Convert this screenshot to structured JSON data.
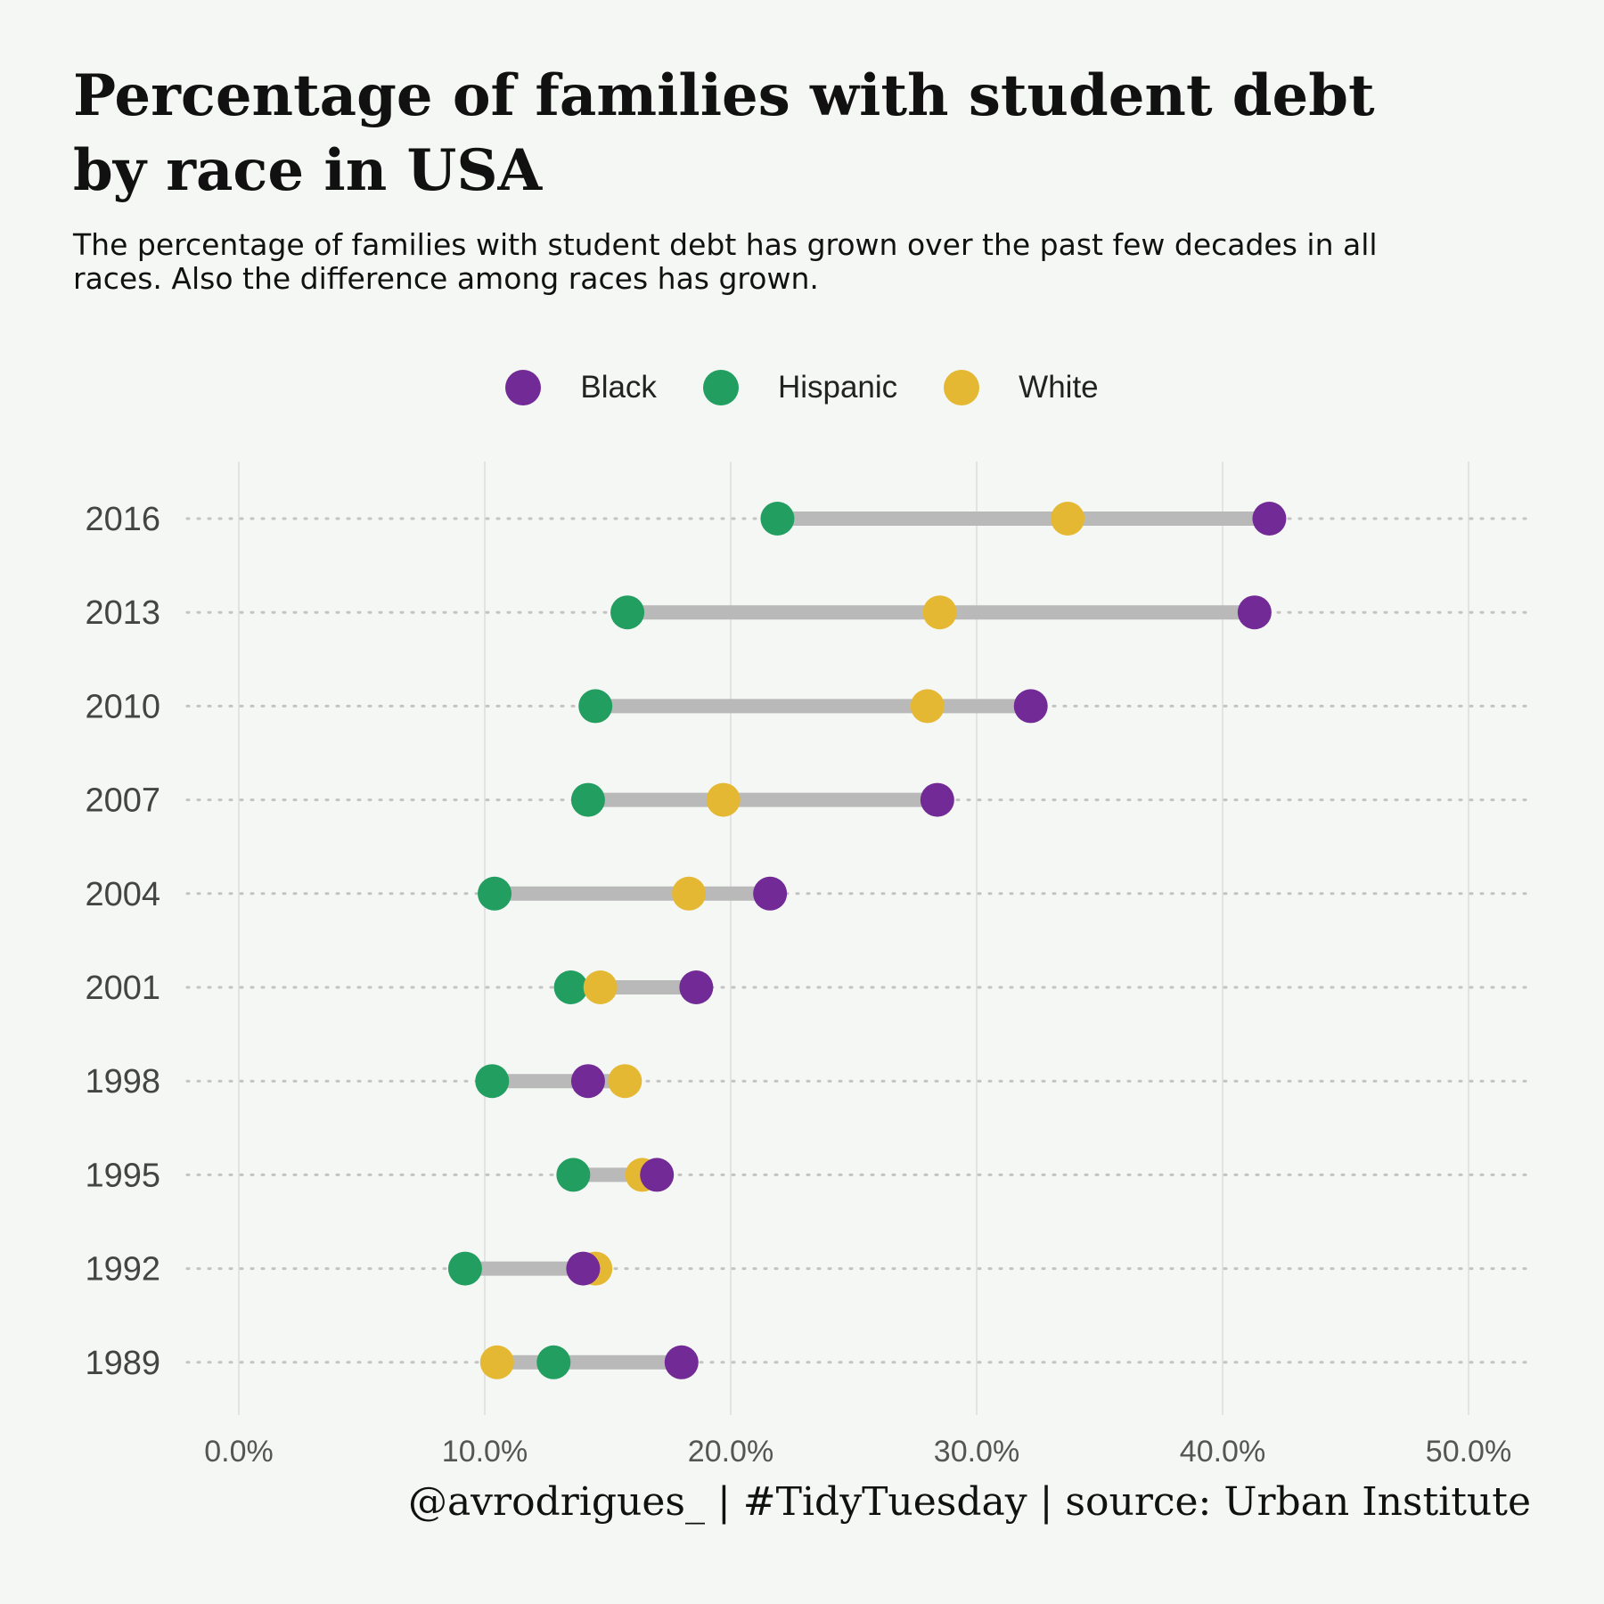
{
  "title_line1": "Percentage of families with student debt",
  "title_line2": "by race in USA",
  "subtitle_line1": "The percentage of families with student debt has grown over the past few decades in all",
  "subtitle_line2": "races. Also the difference among races has grown.",
  "caption": "@avrodrigues_ | #TidyTuesday | source: Urban Institute",
  "colors": {
    "Black": "#722a96",
    "Hispanic": "#229e60",
    "White": "#e5b833",
    "segment": "#b9b9b9",
    "grid": "#e3e3e3",
    "dots": "#c3c3c3"
  },
  "legend": [
    {
      "name": "Black",
      "color": "#722a96"
    },
    {
      "name": "Hispanic",
      "color": "#229e60"
    },
    {
      "name": "White",
      "color": "#e5b833"
    }
  ],
  "chart_data": {
    "type": "scatter",
    "subtype": "dumbbell",
    "categories": [
      "2016",
      "2013",
      "2010",
      "2007",
      "2004",
      "2001",
      "1998",
      "1995",
      "1992",
      "1989"
    ],
    "series": [
      {
        "name": "Black",
        "values": [
          41.9,
          41.3,
          32.2,
          28.4,
          21.6,
          18.6,
          14.2,
          17.0,
          14.0,
          18.0
        ]
      },
      {
        "name": "Hispanic",
        "values": [
          21.9,
          15.8,
          14.5,
          14.2,
          10.4,
          13.5,
          10.3,
          13.6,
          9.2,
          12.8
        ]
      },
      {
        "name": "White",
        "values": [
          33.7,
          28.5,
          28.0,
          19.7,
          18.3,
          14.7,
          15.7,
          16.4,
          14.5,
          10.5
        ]
      }
    ],
    "xlim": [
      0,
      50
    ],
    "xticks": [
      "0.0%",
      "10.0%",
      "20.0%",
      "30.0%",
      "40.0%",
      "50.0%"
    ],
    "xtick_values": [
      0,
      10,
      20,
      30,
      40,
      50
    ],
    "grid": true,
    "legend_position": "top"
  }
}
